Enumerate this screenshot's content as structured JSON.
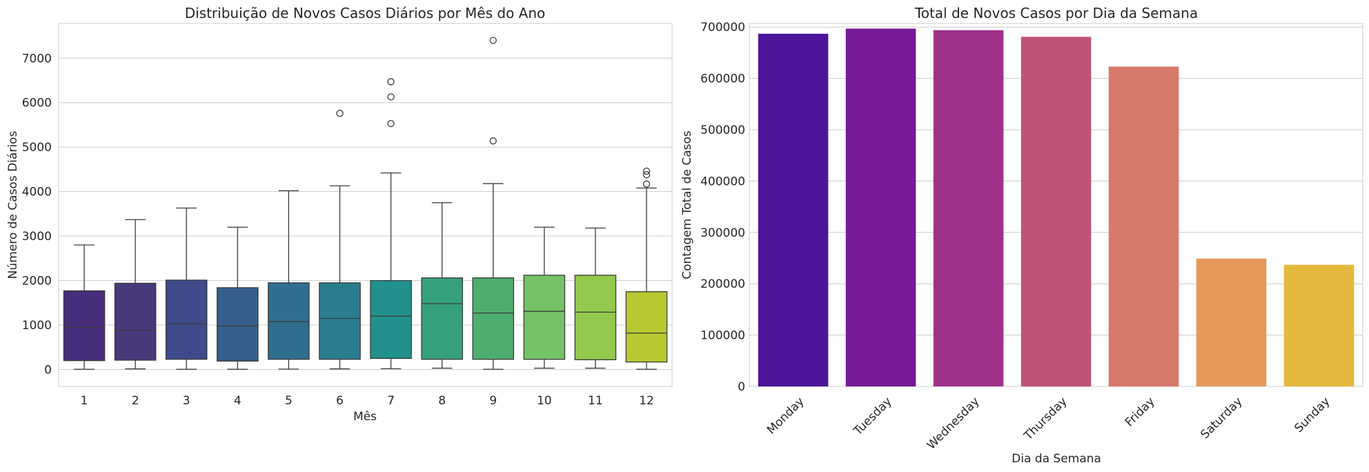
{
  "chart_data": [
    {
      "type": "box",
      "title": "Distribuição de Novos Casos Diários por Mês do Ano",
      "xlabel": "Mês",
      "ylabel": "Número de Casos Diários",
      "ylim": [
        -380,
        7780
      ],
      "yticks": [
        0,
        1000,
        2000,
        3000,
        4000,
        5000,
        6000,
        7000
      ],
      "grid": true,
      "categories": [
        "1",
        "2",
        "3",
        "4",
        "5",
        "6",
        "7",
        "8",
        "9",
        "10",
        "11",
        "12"
      ],
      "boxes": [
        {
          "category": "1",
          "whisker_low": 5,
          "q1": 200,
          "median": 950,
          "q3": 1770,
          "whisker_high": 2800,
          "outliers": [],
          "color": "#472d7b"
        },
        {
          "category": "2",
          "whisker_low": 15,
          "q1": 210,
          "median": 880,
          "q3": 1940,
          "whisker_high": 3370,
          "outliers": [],
          "color": "#47397a"
        },
        {
          "category": "3",
          "whisker_low": 5,
          "q1": 230,
          "median": 1030,
          "q3": 2010,
          "whisker_high": 3630,
          "outliers": [],
          "color": "#3e4a89"
        },
        {
          "category": "4",
          "whisker_low": 5,
          "q1": 190,
          "median": 980,
          "q3": 1840,
          "whisker_high": 3200,
          "outliers": [],
          "color": "#35608d"
        },
        {
          "category": "5",
          "whisker_low": 10,
          "q1": 230,
          "median": 1080,
          "q3": 1950,
          "whisker_high": 4020,
          "outliers": [],
          "color": "#2f6e8e"
        },
        {
          "category": "6",
          "whisker_low": 15,
          "q1": 230,
          "median": 1150,
          "q3": 1950,
          "whisker_high": 4130,
          "outliers": [
            5760
          ],
          "color": "#2a7d8e"
        },
        {
          "category": "7",
          "whisker_low": 20,
          "q1": 250,
          "median": 1200,
          "q3": 2000,
          "whisker_high": 4420,
          "outliers": [
            5530,
            6130,
            6470
          ],
          "color": "#21918c"
        },
        {
          "category": "8",
          "whisker_low": 30,
          "q1": 230,
          "median": 1480,
          "q3": 2060,
          "whisker_high": 3750,
          "outliers": [],
          "color": "#35a07c"
        },
        {
          "category": "9",
          "whisker_low": 5,
          "q1": 230,
          "median": 1270,
          "q3": 2060,
          "whisker_high": 4180,
          "outliers": [
            5140,
            7400
          ],
          "color": "#4fae6f"
        },
        {
          "category": "10",
          "whisker_low": 30,
          "q1": 230,
          "median": 1310,
          "q3": 2120,
          "whisker_high": 3200,
          "outliers": [],
          "color": "#74c265"
        },
        {
          "category": "11",
          "whisker_low": 30,
          "q1": 220,
          "median": 1290,
          "q3": 2120,
          "whisker_high": 3180,
          "outliers": [],
          "color": "#93c94c"
        },
        {
          "category": "12",
          "whisker_low": 5,
          "q1": 170,
          "median": 820,
          "q3": 1750,
          "whisker_high": 4080,
          "outliers": [
            4170,
            4380,
            4460
          ],
          "color": "#b8c830"
        }
      ]
    },
    {
      "type": "bar",
      "title": "Total de Novos Casos por Dia da Semana",
      "xlabel": "Dia da Semana",
      "ylabel": "Contagem Total de Casos",
      "ylim": [
        0,
        707000
      ],
      "yticks": [
        0,
        100000,
        200000,
        300000,
        400000,
        500000,
        600000,
        700000
      ],
      "grid": true,
      "categories": [
        "Monday",
        "Tuesday",
        "Wednesday",
        "Thursday",
        "Friday",
        "Saturday",
        "Sunday"
      ],
      "values": [
        687000,
        697000,
        694000,
        681000,
        623000,
        249000,
        237000
      ],
      "colors": [
        "#4c169b",
        "#761a98",
        "#9e3289",
        "#bf5278",
        "#d67a6b",
        "#e4995a",
        "#e5b83e"
      ]
    }
  ]
}
